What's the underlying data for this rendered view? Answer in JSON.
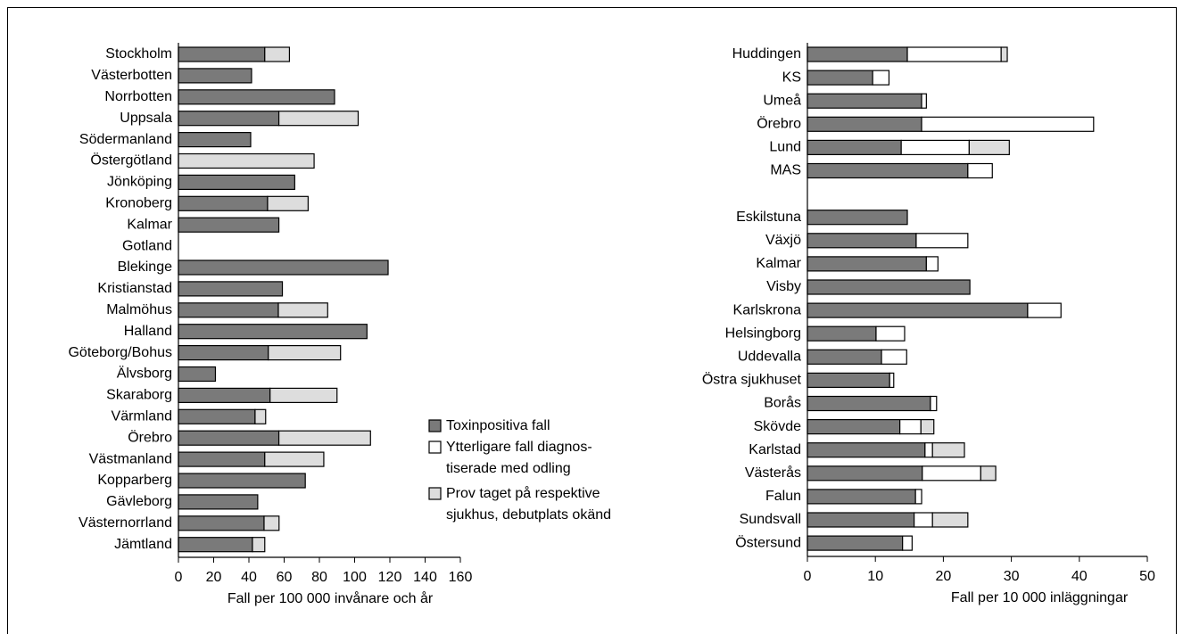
{
  "chart_data": [
    {
      "type": "barh-stacked",
      "categories": [
        "Stockholm",
        "Västerbotten",
        "Norrbotten",
        "Uppsala",
        "Södermanland",
        "Östergötland",
        "Jönköping",
        "Kronoberg",
        "Kalmar",
        "Gotland",
        "Blekinge",
        "Kristianstad",
        "Malmöhus",
        "Halland",
        "Göteborg/Bohus",
        "Älvsborg",
        "Skaraborg",
        "Värmland",
        "Örebro",
        "Västmanland",
        "Kopparberg",
        "Gävleborg",
        "Västernorrland",
        "Jämtland"
      ],
      "series": [
        {
          "color": "#7a7a7a",
          "values": [
            49,
            41.5,
            88.6,
            57,
            41,
            null,
            66,
            50.6,
            57,
            null,
            119,
            59,
            56.7,
            107,
            51,
            21,
            52,
            43.5,
            57,
            49,
            72,
            45,
            48.6,
            42
          ]
        },
        {
          "color": "#dddddd",
          "values": [
            14,
            null,
            null,
            45,
            null,
            77,
            null,
            23,
            null,
            null,
            null,
            null,
            28,
            null,
            41,
            null,
            38,
            6,
            52,
            33.5,
            null,
            null,
            8.5,
            7
          ]
        }
      ],
      "xlim": [
        0,
        160
      ],
      "xticks": [
        0,
        20,
        40,
        60,
        80,
        100,
        120,
        140,
        160
      ],
      "xlabel": "Fall per 100 000 invånare och år"
    },
    {
      "type": "barh-stacked",
      "categories": [
        "Huddingen",
        "KS",
        "Umeå",
        "Örebro",
        "Lund",
        "MAS",
        null,
        "Eskilstuna",
        "Växjö",
        "Kalmar",
        "Visby",
        "Karlskrona",
        "Helsingborg",
        "Uddevalla",
        "Östra sjukhuset",
        "Borås",
        "Skövde",
        "Karlstad",
        "Västerås",
        "Falun",
        "Sundsvall",
        "Östersund"
      ],
      "series": [
        {
          "name": "Toxinpositiva fall",
          "color": "#7a7a7a",
          "values": [
            14.7,
            9.6,
            16.8,
            16.8,
            13.8,
            23.6,
            null,
            14.7,
            16,
            17.5,
            23.9,
            32.4,
            10.1,
            10.9,
            12.1,
            18.1,
            13.6,
            17.3,
            16.9,
            15.9,
            15.7,
            14
          ]
        },
        {
          "name": "Ytterligare fall diagnos-\ntiserade med odling",
          "color": "#ffffff",
          "values": [
            13.8,
            2.4,
            0.7,
            25.3,
            10,
            3.6,
            null,
            null,
            7.6,
            1.7,
            null,
            4.9,
            4.2,
            3.7,
            0.6,
            0.9,
            3.1,
            1.1,
            8.6,
            0.9,
            2.7,
            1.4
          ]
        },
        {
          "name": "Prov taget på respektive\nsjukhus, debutplats okänd",
          "color": "#dddddd",
          "values": [
            0.9,
            null,
            null,
            null,
            5.9,
            null,
            null,
            null,
            null,
            null,
            null,
            null,
            null,
            null,
            null,
            null,
            1.9,
            4.7,
            2.2,
            null,
            5.2,
            null
          ]
        }
      ],
      "xlim": [
        0,
        50
      ],
      "xticks": [
        0,
        10,
        20,
        30,
        40,
        50
      ],
      "xlabel": "Fall per 10 000 inläggningar"
    }
  ]
}
